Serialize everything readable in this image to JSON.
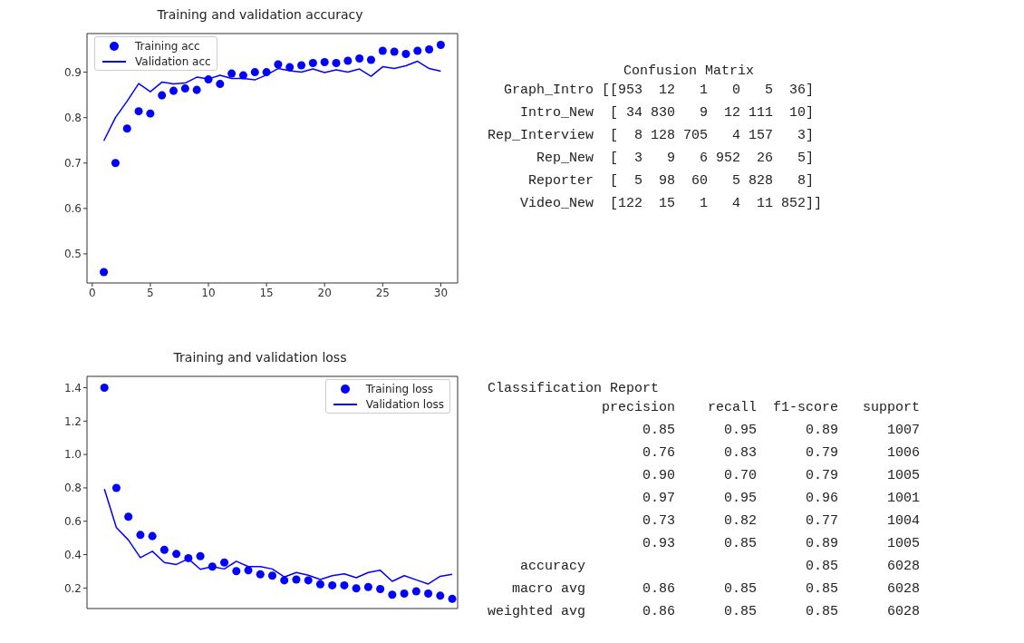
{
  "chart_data": [
    {
      "type": "scatter",
      "title": "Training and validation accuracy",
      "x": [
        1,
        2,
        3,
        4,
        5,
        6,
        7,
        8,
        9,
        10,
        11,
        12,
        13,
        14,
        15,
        16,
        17,
        18,
        19,
        20,
        21,
        22,
        23,
        24,
        25,
        26,
        27,
        28,
        29,
        30
      ],
      "series": [
        {
          "name": "Training acc",
          "type": "scatter",
          "marker": "circle",
          "color": "#0000ff",
          "values": [
            0.46,
            0.7,
            0.776,
            0.814,
            0.809,
            0.849,
            0.859,
            0.864,
            0.861,
            0.884,
            0.874,
            0.897,
            0.893,
            0.9,
            0.9,
            0.917,
            0.911,
            0.915,
            0.92,
            0.922,
            0.92,
            0.925,
            0.93,
            0.927,
            0.947,
            0.945,
            0.94,
            0.947,
            0.95,
            0.96
          ]
        },
        {
          "name": "Validation acc",
          "type": "line",
          "color": "#0000ff",
          "values": [
            0.749,
            0.8,
            0.836,
            0.875,
            0.857,
            0.878,
            0.874,
            0.876,
            0.889,
            0.885,
            0.893,
            0.886,
            0.886,
            0.883,
            0.894,
            0.908,
            0.903,
            0.9,
            0.907,
            0.899,
            0.905,
            0.9,
            0.907,
            0.891,
            0.912,
            0.908,
            0.914,
            0.924,
            0.908,
            0.902
          ]
        }
      ],
      "xlim": [
        -0.45,
        31.45
      ],
      "xticks": [
        0,
        5,
        10,
        15,
        20,
        25,
        30
      ],
      "ylim": [
        0.436,
        0.985
      ],
      "yticks": [
        0.5,
        0.6,
        0.7,
        0.8,
        0.9
      ],
      "legend": "top left"
    },
    {
      "type": "other",
      "title": "Confusion Matrix",
      "annotations": [
        "  Graph_Intro [[953  12   1   0   5  36]",
        "    Intro_New  [ 34 830   9  12 111  10]",
        "Rep_Interview  [  8 128 705   4 157   3]",
        "      Rep_New  [  3   9   6 952  26   5]",
        "     Reporter  [  5  98  60   5 828   8]",
        "    Video_New  [122  15   1   4  11 852]]"
      ]
    },
    {
      "type": "scatter",
      "title": "Training and validation loss",
      "categories": [
        null,
        null,
        null,
        null,
        null,
        null,
        null,
        null,
        null,
        null,
        null,
        null,
        null,
        null,
        null,
        null,
        null,
        null,
        null,
        null,
        null,
        null,
        null,
        null,
        null,
        null,
        null,
        null,
        null,
        null
      ],
      "series": [
        {
          "name": "Training loss",
          "type": "scatter",
          "marker": "circle",
          "color": "#0000ff",
          "values": [
            1.4,
            0.8,
            0.627,
            0.518,
            0.511,
            0.429,
            0.404,
            0.379,
            0.391,
            0.328,
            0.353,
            0.301,
            0.306,
            0.282,
            0.274,
            0.246,
            0.251,
            0.246,
            0.222,
            0.216,
            0.216,
            0.198,
            0.206,
            0.194,
            0.16,
            0.167,
            0.18,
            0.167,
            0.154,
            0.135
          ]
        },
        {
          "name": "Validation loss",
          "type": "line",
          "color": "#0000ff",
          "values": [
            0.793,
            0.562,
            0.488,
            0.382,
            0.42,
            0.353,
            0.341,
            0.375,
            0.312,
            0.328,
            0.314,
            0.36,
            0.328,
            0.328,
            0.314,
            0.266,
            0.293,
            0.277,
            0.251,
            0.274,
            0.285,
            0.262,
            0.293,
            0.306,
            0.24,
            0.274,
            0.249,
            0.224,
            0.27,
            0.282
          ]
        }
      ],
      "ylim": [
        0.077,
        1.468
      ],
      "yticks": [
        0.2,
        0.4,
        0.6,
        0.8,
        {
          "value": 1,
          "label": "1.0"
        },
        1.2,
        1.4
      ],
      "legend": "top right"
    },
    {
      "type": "other",
      "title": "Classification Report",
      "annotations": [
        "              precision    recall  f1-score   support",
        "                   0.85      0.95      0.89      1007",
        "                   0.76      0.83      0.79      1006",
        "                   0.90      0.70      0.79      1005",
        "                   0.97      0.95      0.96      1001",
        "                   0.73      0.82      0.77      1004",
        "                   0.93      0.85      0.89      1005",
        "    accuracy                           0.85      6028",
        "   macro avg       0.86      0.85      0.85      6028",
        "weighted avg       0.86      0.85      0.85      6028"
      ]
    }
  ]
}
